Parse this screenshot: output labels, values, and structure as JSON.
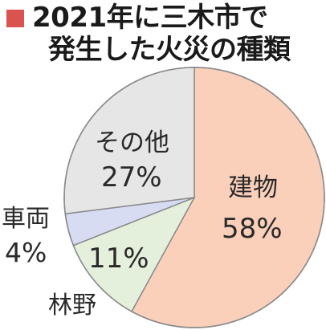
{
  "title": {
    "line1": "2021年に三木市で",
    "line2": "発生した火災の種類"
  },
  "colors": {
    "title_marker": "#d9534f",
    "outline": "#8a8a8a"
  },
  "chart_data": {
    "type": "pie",
    "title": "2021年に三木市で発生した火災の種類",
    "slices": [
      {
        "label": "建物",
        "value_label": "58%",
        "value": 58,
        "color": "#fbd0bb"
      },
      {
        "label": "林野",
        "value_label": "11%",
        "value": 11,
        "color": "#e4f0dc"
      },
      {
        "label": "車両",
        "value_label": "4%",
        "value": 4,
        "color": "#d7dcf2"
      },
      {
        "label": "その他",
        "value_label": "27%",
        "value": 27,
        "color": "#e6e6e6"
      }
    ],
    "start": "12 o'clock",
    "direction": "clockwise"
  }
}
